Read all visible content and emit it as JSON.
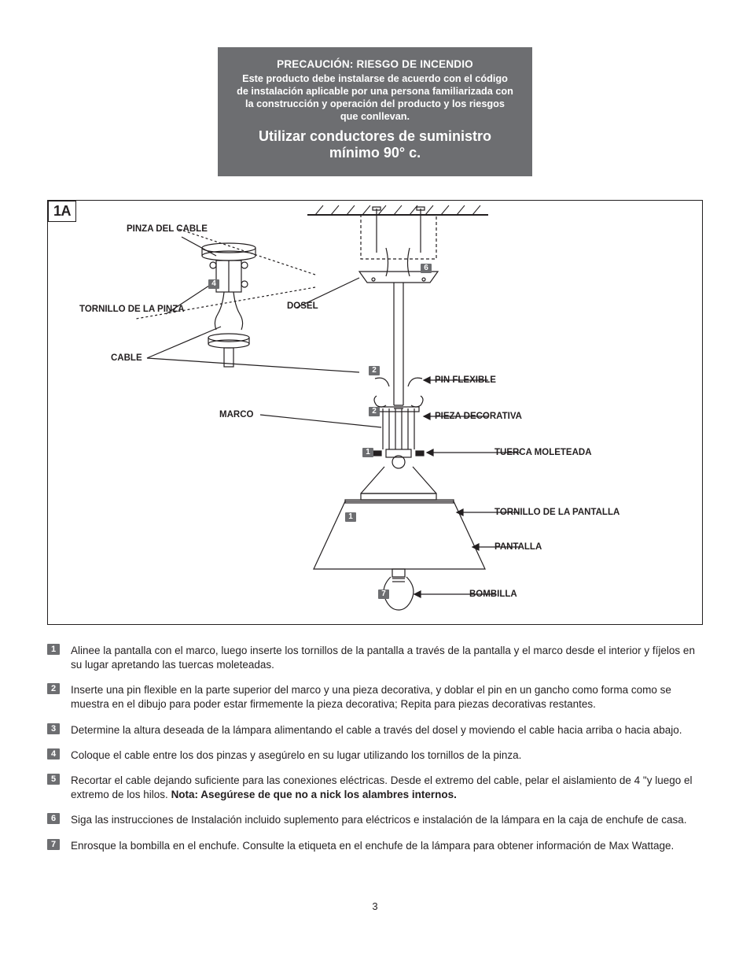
{
  "caution": {
    "title": "PRECAUCIÓN: RIESGO DE INCENDIO",
    "body": "Este producto debe instalarse de acuerdo con el código de instalación aplicable por una persona familiarizada con la construcción y operación del producto y los riesgos que conllevan.",
    "big": "Utilizar conductores de suministro mínimo 90° c.",
    "bg_color": "#6d6e71",
    "text_color": "#ffffff"
  },
  "diagram": {
    "corner": "1A",
    "labels": {
      "pinza_cable": "PINZA DEL CABLE",
      "tornillo_pinza": "TORNILLO DE LA PINZA",
      "cable": "CABLE",
      "marco": "MARCO",
      "dosel": "DOSEL",
      "pin_flexible": "PIN FLEXIBLE",
      "pieza_decorativa": "PIEZA DECORATIVA",
      "tuerca": "TUERCA MOLETEADA",
      "tornillo_pantalla": "TORNILLO DE LA PANTALLA",
      "pantalla": "PANTALLA",
      "bombilla": "BOMBILLA"
    },
    "step_markers": {
      "m1a": "1",
      "m1b": "1",
      "m2a": "2",
      "m2b": "2",
      "m4": "4",
      "m6": "6",
      "m7": "7"
    }
  },
  "steps": [
    {
      "n": "1",
      "text": "Alinee la pantalla con el marco, luego inserte los tornillos de la pantalla a través de la pantalla y el marco desde el interior y fíjelos en su lugar apretando las tuercas moleteadas."
    },
    {
      "n": "2",
      "text": "Inserte una pin flexible en la parte superior del marco y una pieza decorativa, y doblar el pin en un gancho como forma como se muestra en el dibujo para poder estar firmemente la pieza decorativa; Repita para piezas decorativas restantes."
    },
    {
      "n": "3",
      "text": "Determine la altura deseada de la lámpara alimentando el cable a través del dosel y moviendo el cable hacia arriba o hacia abajo."
    },
    {
      "n": "4",
      "text": "Coloque el cable entre los dos pinzas y asegúrelo en su lugar utilizando los tornillos de la pinza."
    },
    {
      "n": "5",
      "text_html": "Recortar el cable dejando suficiente para las conexiones eléctricas. Desde el extremo del cable, pelar el aislamiento de 4 \"y luego el extremo de los hilos. <b>Nota: Asegúrese de que no a nick los alambres internos.</b>"
    },
    {
      "n": "6",
      "text": "Siga las instrucciones de Instalación incluido suplemento para eléctricos e instalación de la lámpara en la caja de enchufe de casa."
    },
    {
      "n": "7",
      "text": "Enrosque la bombilla en el enchufe. Consulte la etiqueta en el enchufe de la lámpara para obtener información de Max Wattage."
    }
  ],
  "page_number": "3"
}
